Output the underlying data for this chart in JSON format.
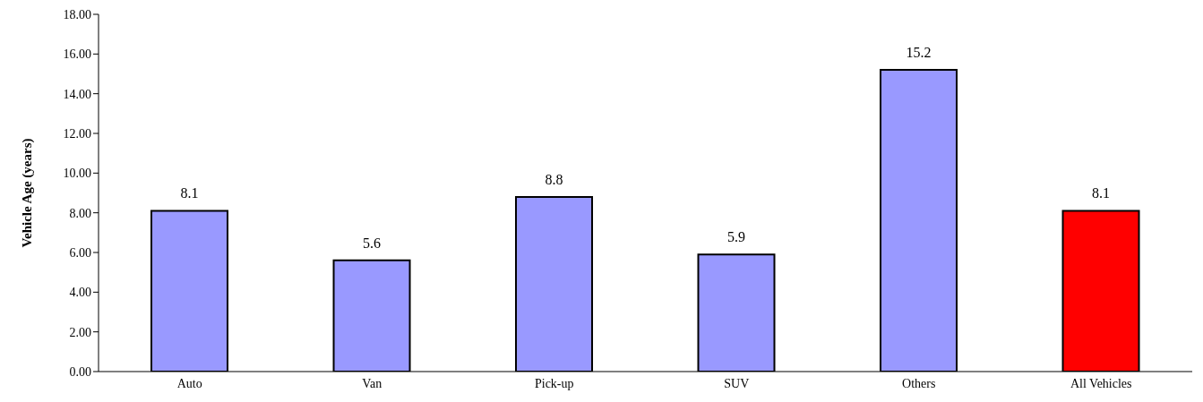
{
  "chart_data": {
    "type": "bar",
    "ylabel": "Vehicle Age (years)",
    "categories": [
      "Auto",
      "Van",
      "Pick-up",
      "SUV",
      "Others",
      "All Vehicles"
    ],
    "values": [
      8.1,
      5.6,
      8.8,
      5.9,
      15.2,
      8.1
    ],
    "colors": [
      "#9999ff",
      "#9999ff",
      "#9999ff",
      "#9999ff",
      "#9999ff",
      "#ff0000"
    ],
    "ylim": [
      0,
      18
    ],
    "yticks": [
      {
        "value": 0,
        "label": "0.00"
      },
      {
        "value": 2,
        "label": "2.00"
      },
      {
        "value": 4,
        "label": "4.00"
      },
      {
        "value": 6,
        "label": "6.00"
      },
      {
        "value": 8,
        "label": "8.00"
      },
      {
        "value": 10,
        "label": "10.00"
      },
      {
        "value": 12,
        "label": "12.00"
      },
      {
        "value": 14,
        "label": "14.00"
      },
      {
        "value": 16,
        "label": "16.00"
      },
      {
        "value": 18,
        "label": "18.00"
      }
    ],
    "data_labels": true,
    "grid": false
  }
}
